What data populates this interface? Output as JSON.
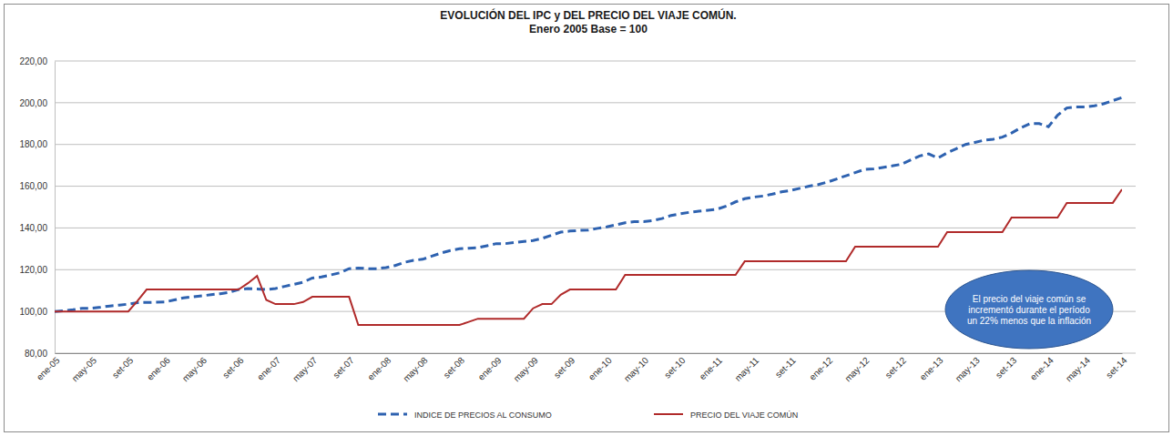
{
  "chart_data": {
    "type": "line",
    "title": "EVOLUCIÓN DEL IPC y DEL PRECIO DEL VIAJE COMÚN.",
    "subtitle": "Enero 2005 Base = 100",
    "categories": [
      "ene-05",
      null,
      null,
      null,
      "may-05",
      null,
      null,
      null,
      "set-05",
      null,
      null,
      null,
      "ene-06",
      null,
      null,
      null,
      "may-06",
      null,
      null,
      null,
      "set-06",
      null,
      null,
      null,
      "ene-07",
      null,
      null,
      null,
      "may-07",
      null,
      null,
      null,
      "set-07",
      null,
      null,
      null,
      "ene-08",
      null,
      null,
      null,
      "may-08",
      null,
      null,
      null,
      "set-08",
      null,
      null,
      null,
      "ene-09",
      null,
      null,
      null,
      "may-09",
      null,
      null,
      null,
      "set-09",
      null,
      null,
      null,
      "ene-10",
      null,
      null,
      null,
      "may-10",
      null,
      null,
      null,
      "set-10",
      null,
      null,
      null,
      "ene-11",
      null,
      null,
      null,
      "may-11",
      null,
      null,
      null,
      "set-11",
      null,
      null,
      null,
      "ene-12",
      null,
      null,
      null,
      "may-12",
      null,
      null,
      null,
      "set-12",
      null,
      null,
      null,
      "ene-13",
      null,
      null,
      null,
      "may-13",
      null,
      null,
      null,
      "set-13",
      null,
      null,
      null,
      "ene-14",
      null,
      null,
      null,
      "may-14",
      null,
      null,
      null,
      "set-14"
    ],
    "series": [
      {
        "name": "INDICE DE PRECIOS AL CONSUMO",
        "color": "#2e62b0",
        "line_style": "dashed",
        "values": [
          100,
          100.3,
          100.8,
          101.5,
          101.5,
          102,
          102.6,
          103,
          103.5,
          104.2,
          104.3,
          104.4,
          104.5,
          105.5,
          106.5,
          107,
          107.5,
          108,
          108.5,
          109.2,
          110.5,
          111,
          110.8,
          110.5,
          111,
          112,
          113,
          114,
          116,
          116.5,
          117.5,
          118.5,
          120.5,
          120.8,
          120.5,
          120.5,
          121,
          122,
          123.5,
          124.5,
          125,
          126.5,
          128,
          129.2,
          130,
          130.3,
          130.5,
          131.5,
          132.5,
          132.5,
          133,
          133.5,
          134,
          135,
          136.5,
          138,
          138.5,
          138.8,
          139,
          139.8,
          140.5,
          141.5,
          142.5,
          143,
          143,
          143.5,
          144.5,
          146,
          146.8,
          147.5,
          148,
          148.5,
          149,
          150.5,
          152.5,
          154,
          154.8,
          155.3,
          156.2,
          157.3,
          158,
          159,
          160,
          160.8,
          162,
          163.5,
          165,
          166.5,
          168,
          168.3,
          169,
          169.7,
          170.5,
          172.5,
          174.5,
          175.5,
          173.5,
          176,
          178,
          180,
          181,
          182,
          182.5,
          183.5,
          185.5,
          188,
          190,
          190,
          188.5,
          194,
          197.5,
          198,
          198,
          198.5,
          199.5,
          201,
          202.5
        ]
      },
      {
        "name": "PRECIO DEL VIAJE COMÚN",
        "color": "#b02a2a",
        "line_style": "solid",
        "values": [
          100,
          100,
          100,
          100,
          100,
          100,
          100,
          100,
          100,
          105,
          110.5,
          110.5,
          110.5,
          110.5,
          110.5,
          110.5,
          110.5,
          110.5,
          110.5,
          110.5,
          110.5,
          113.5,
          117,
          105.5,
          103.5,
          103.5,
          103.5,
          104.5,
          107,
          107,
          107,
          107,
          107,
          93.5,
          93.5,
          93.5,
          93.5,
          93.5,
          93.5,
          93.5,
          93.5,
          93.5,
          93.5,
          93.5,
          93.5,
          95,
          96.5,
          96.5,
          96.5,
          96.5,
          96.5,
          96.5,
          101.5,
          103.5,
          103.5,
          108,
          110.5,
          110.5,
          110.5,
          110.5,
          110.5,
          110.5,
          117.5,
          117.5,
          117.5,
          117.5,
          117.5,
          117.5,
          117.5,
          117.5,
          117.5,
          117.5,
          117.5,
          117.5,
          117.5,
          124,
          124,
          124,
          124,
          124,
          124,
          124,
          124,
          124,
          124,
          124,
          124,
          131,
          131,
          131,
          131,
          131,
          131,
          131,
          131,
          131,
          131,
          138,
          138,
          138,
          138,
          138,
          138,
          138,
          145,
          145,
          145,
          145,
          145,
          145,
          152,
          152,
          152,
          152,
          152,
          152,
          158.5
        ]
      }
    ],
    "ylim": [
      80,
      220
    ],
    "yticks": [
      {
        "value": 80,
        "label": "80,00"
      },
      {
        "value": 100,
        "label": "100,00"
      },
      {
        "value": 120,
        "label": "120,00"
      },
      {
        "value": 140,
        "label": "140,00"
      },
      {
        "value": 160,
        "label": "160,00"
      },
      {
        "value": 180,
        "label": "180,00"
      },
      {
        "value": 200,
        "label": "200,00"
      },
      {
        "value": 220,
        "label": "220,00"
      }
    ],
    "grid": true,
    "legend": "bottom",
    "annotations": [
      {
        "text": "El precio del viaje común se incrementó durante el período un 22% menos que la inflación"
      }
    ]
  }
}
